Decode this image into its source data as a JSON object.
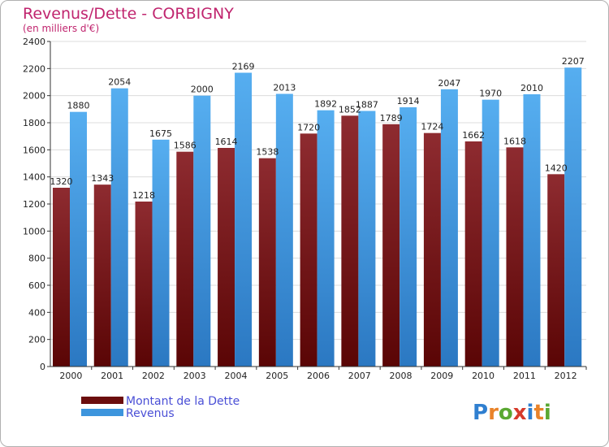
{
  "chart_data": {
    "type": "bar",
    "title": "Revenus/Dette - CORBIGNY",
    "subtitle": "(en milliers d'€)",
    "xlabel": "",
    "ylabel": "",
    "ylim": [
      0,
      2400
    ],
    "yticks": [
      0,
      200,
      400,
      600,
      800,
      1000,
      1200,
      1400,
      1600,
      1800,
      2000,
      2200,
      2400
    ],
    "grid": true,
    "legend_position": "bottom-left",
    "categories": [
      "2000",
      "2001",
      "2002",
      "2003",
      "2004",
      "2005",
      "2006",
      "2007",
      "2008",
      "2009",
      "2010",
      "2011",
      "2012"
    ],
    "series": [
      {
        "name": "Montant de la Dette",
        "color": "#7a1a1a",
        "values": [
          1320,
          1343,
          1218,
          1586,
          1614,
          1538,
          1720,
          1852,
          1789,
          1724,
          1662,
          1618,
          1420
        ],
        "labels": [
          "1320",
          "1343",
          "1218",
          "1586",
          "1614",
          "1538",
          "1720",
          "1852",
          "1789",
          "1724",
          "1662",
          "1618",
          "1420"
        ]
      },
      {
        "name": "Revenus",
        "color": "#3d95dd",
        "values": [
          1880,
          2054,
          1675,
          2000,
          2169,
          2013,
          1892,
          1887,
          1914,
          2047,
          1970,
          2010,
          2207
        ],
        "labels": [
          "1880",
          "2054",
          "1675",
          "2000",
          "2169",
          "2013",
          "1892",
          "1887",
          "1914",
          "2047",
          "1970",
          "2010",
          "2207"
        ]
      }
    ]
  },
  "logo": {
    "text": "Proxiti",
    "letters": [
      {
        "ch": "P",
        "color": "#2f7fd0"
      },
      {
        "ch": "r",
        "color": "#e9832a"
      },
      {
        "ch": "o",
        "color": "#5aa832"
      },
      {
        "ch": "x",
        "color": "#d63a2a"
      },
      {
        "ch": "i",
        "color": "#2f7fd0"
      },
      {
        "ch": "t",
        "color": "#e9832a"
      },
      {
        "ch": "i",
        "color": "#5aa832"
      }
    ]
  }
}
